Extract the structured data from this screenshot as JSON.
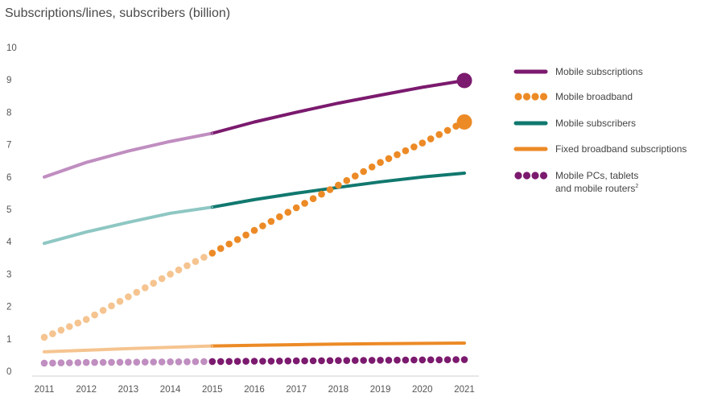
{
  "chart_data": {
    "type": "line",
    "title": "Subscriptions/lines, subscribers (billion)",
    "xlabel": "",
    "ylabel": "",
    "xlim": [
      2011,
      2021
    ],
    "ylim": [
      0,
      10
    ],
    "x_ticks": [
      "2011",
      "2012",
      "2013",
      "2014",
      "2015",
      "2016",
      "2017",
      "2018",
      "2019",
      "2020",
      "2021"
    ],
    "y_ticks": [
      "0",
      "1",
      "2",
      "3",
      "4",
      "5",
      "6",
      "7",
      "8",
      "9",
      "10"
    ],
    "grid": false,
    "legend_position": "right",
    "forecast_start": 2015,
    "series": [
      {
        "name": "Mobile subscriptions",
        "style": "solid",
        "color": "#7b1a6e",
        "color_history": "#c08ec0",
        "end_marker": true,
        "x": [
          2011,
          2012,
          2013,
          2014,
          2015,
          2016,
          2017,
          2018,
          2019,
          2020,
          2021
        ],
        "values": [
          6.0,
          6.45,
          6.8,
          7.1,
          7.35,
          7.7,
          8.0,
          8.28,
          8.53,
          8.77,
          8.98
        ]
      },
      {
        "name": "Mobile broadband",
        "style": "dotted",
        "color": "#ec8a26",
        "color_history": "#f5c490",
        "end_marker": true,
        "x": [
          2011,
          2012,
          2013,
          2014,
          2015,
          2016,
          2017,
          2018,
          2019,
          2020,
          2021
        ],
        "values": [
          1.05,
          1.6,
          2.3,
          3.0,
          3.65,
          4.35,
          5.05,
          5.75,
          6.45,
          7.05,
          7.7
        ]
      },
      {
        "name": "Mobile subscribers",
        "style": "solid",
        "color": "#11786f",
        "color_history": "#8ec7c3",
        "end_marker": false,
        "x": [
          2011,
          2012,
          2013,
          2014,
          2015,
          2016,
          2017,
          2018,
          2019,
          2020,
          2021
        ],
        "values": [
          3.95,
          4.3,
          4.6,
          4.88,
          5.07,
          5.3,
          5.5,
          5.68,
          5.85,
          6.0,
          6.12
        ]
      },
      {
        "name": "Fixed broadband subscriptions",
        "style": "solid",
        "color": "#ec8a26",
        "color_history": "#f5c490",
        "end_marker": false,
        "x": [
          2011,
          2012,
          2013,
          2014,
          2015,
          2016,
          2017,
          2018,
          2019,
          2020,
          2021
        ],
        "values": [
          0.6,
          0.65,
          0.7,
          0.74,
          0.78,
          0.8,
          0.82,
          0.84,
          0.85,
          0.86,
          0.87
        ]
      },
      {
        "name": "Mobile PCs, tablets and mobile routers²",
        "legend_lines": [
          "Mobile PCs, tablets",
          "and mobile routers"
        ],
        "legend_superscript": "2",
        "style": "dotted",
        "color": "#7b1a6e",
        "color_history": "#c08ec0",
        "end_marker": false,
        "x": [
          2011,
          2012,
          2013,
          2014,
          2015,
          2016,
          2017,
          2018,
          2019,
          2020,
          2021
        ],
        "values": [
          0.25,
          0.27,
          0.28,
          0.29,
          0.3,
          0.31,
          0.32,
          0.33,
          0.34,
          0.35,
          0.36
        ]
      }
    ]
  }
}
